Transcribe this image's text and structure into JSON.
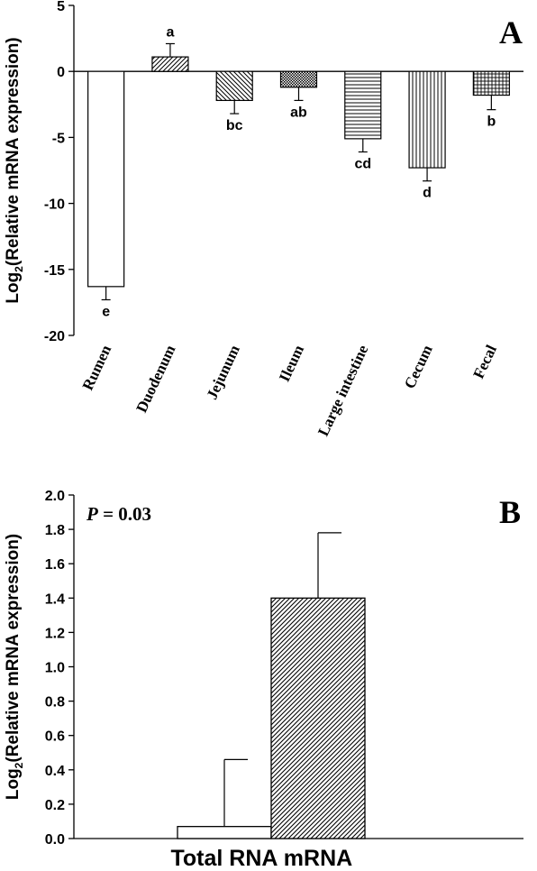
{
  "chart_data": [
    {
      "panel_letter": "A",
      "type": "bar",
      "ylabel_main": "Log",
      "ylabel_sub": "2",
      "ylabel_rest": "(Relative mRNA expression)",
      "ylim": [
        -20,
        5
      ],
      "yticks": [
        5,
        0,
        -5,
        -10,
        -15,
        -20
      ],
      "categories": [
        "Rumen",
        "Duodenum",
        "Jejunum",
        "Ileum",
        "Large intestine",
        "Cecum",
        "Fecal"
      ],
      "values": [
        -16.3,
        1.1,
        -2.2,
        -1.2,
        -5.1,
        -7.3,
        -1.8
      ],
      "errors": [
        1.0,
        1.0,
        1.0,
        1.0,
        1.0,
        1.0,
        1.1
      ],
      "significance": [
        "e",
        "a",
        "bc",
        "ab",
        "cd",
        "d",
        "b"
      ],
      "patterns": [
        "none",
        "diag-right",
        "diag-left",
        "dots",
        "horizontal",
        "vertical",
        "grid"
      ]
    },
    {
      "panel_letter": "B",
      "type": "bar",
      "ylabel_main": "Log",
      "ylabel_sub": "2",
      "ylabel_rest": "(Relative mRNA expression)",
      "ylim": [
        0,
        2.0
      ],
      "yticks": [
        "0.0",
        "0.2",
        "0.4",
        "0.6",
        "0.8",
        "1.0",
        "1.2",
        "1.4",
        "1.6",
        "1.8",
        "2.0"
      ],
      "categories": [
        "Total RNA",
        "mRNA"
      ],
      "values": [
        0.07,
        1.4
      ],
      "errors": [
        0.39,
        0.38
      ],
      "patterns": [
        "none",
        "diag-right-dense"
      ],
      "annotation_italic": "P",
      "annotation_rest": " = 0.03"
    }
  ]
}
